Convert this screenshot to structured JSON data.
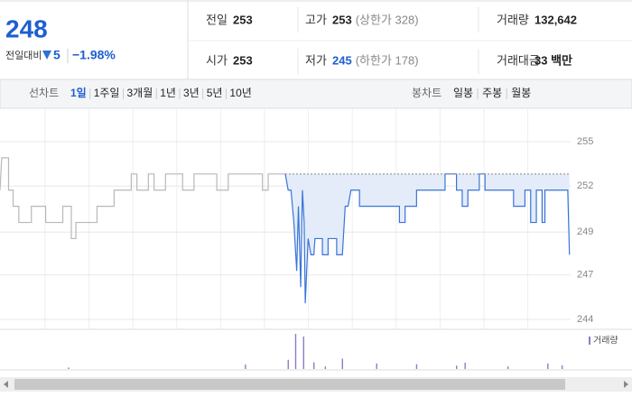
{
  "header": {
    "price": "248",
    "change_label": "전일대비",
    "change": "5",
    "change_pct": "−1.98%"
  },
  "stats": [
    {
      "label": "전일",
      "value": "253"
    },
    {
      "label": "고가",
      "value": "253",
      "extra": "(상한가 328)"
    },
    {
      "label": "거래량",
      "value": "132,642"
    },
    {
      "label": "시가",
      "value": "253"
    },
    {
      "label": "저가",
      "value": "245",
      "extra": "(하한가 178)"
    },
    {
      "label": "거래대금",
      "value": "33 백만"
    }
  ],
  "tabs": {
    "line_label": "선차트",
    "line": [
      "1일",
      "1주일",
      "3개월",
      "1년",
      "3년",
      "5년",
      "10년"
    ],
    "candle_label": "봉차트",
    "candle": [
      "일봉",
      "주봉",
      "월봉"
    ]
  },
  "chart_data": {
    "type": "line",
    "xlim": [
      0,
      100
    ],
    "ylim": [
      244,
      255
    ],
    "yticks": [
      255,
      {
        "value": 252.25,
        "label": "252"
      },
      {
        "value": 249.4,
        "label": "249"
      },
      {
        "value": 246.75,
        "label": "247"
      },
      244
    ],
    "grid": true,
    "series": [
      {
        "color": "#b8b8b8",
        "x": [
          0,
          0.3,
          1.5,
          1.5,
          2.3,
          2.3,
          3.3,
          3.3,
          5.5,
          5.5,
          8,
          8,
          11,
          11,
          12.5,
          12.5,
          13.3,
          13.3,
          17,
          17,
          20,
          20,
          23,
          23,
          24,
          24,
          26,
          26,
          27,
          27,
          29,
          29,
          32,
          32,
          34,
          34,
          38,
          38,
          40,
          40,
          46,
          46,
          47,
          47,
          50
        ],
        "values": [
          252,
          254,
          254,
          252,
          252,
          251,
          251,
          250,
          250,
          251,
          251,
          250,
          250,
          251,
          251,
          249,
          249,
          250,
          250,
          251,
          251,
          252,
          252,
          253,
          253,
          252,
          252,
          253,
          253,
          252,
          252,
          253,
          253,
          252,
          252,
          253,
          253,
          252,
          252,
          253,
          253,
          252,
          252,
          253,
          253
        ]
      },
      {
        "color": "#3a74d8",
        "fill": "#e3ecf8",
        "x": [
          50,
          50.5,
          51,
          51.5,
          52,
          52.3,
          52.7,
          53,
          53.3,
          53.5,
          54,
          54.5,
          55,
          55.2,
          56.5,
          56.5,
          57.5,
          57.5,
          59,
          59,
          60,
          60.5,
          61,
          61.5,
          63,
          63,
          70,
          70,
          71,
          71,
          73,
          73,
          78,
          78,
          80,
          80,
          81,
          81,
          82,
          82,
          84,
          84,
          85,
          85,
          90,
          90,
          92,
          92,
          93,
          93,
          94,
          94,
          95,
          95,
          95.5,
          95.5,
          99.5,
          99.8
        ],
        "values": [
          253,
          252,
          252,
          250,
          247,
          251,
          246,
          252,
          250,
          245,
          249,
          248,
          248,
          249,
          249,
          248,
          248,
          249,
          249,
          248,
          248,
          251,
          251,
          252,
          252,
          251,
          251,
          250,
          250,
          251,
          251,
          252,
          252,
          253,
          253,
          252,
          252,
          251,
          251,
          252,
          252,
          253,
          253,
          252,
          252,
          251,
          251,
          252,
          252,
          250,
          250,
          252,
          252,
          250,
          250,
          252,
          252,
          248
        ]
      }
    ],
    "reference": {
      "value": 253,
      "from": 50,
      "to": 100
    },
    "volume": {
      "label": "거래량",
      "color": "#8f7bc4",
      "ylim": [
        0,
        10000
      ],
      "x": [
        12,
        43,
        50.5,
        51.8,
        53.2,
        55,
        57,
        60,
        66,
        73,
        80,
        81.5,
        89,
        96,
        98.5
      ],
      "values": [
        400,
        1200,
        2500,
        9500,
        8800,
        1800,
        700,
        2800,
        1500,
        1300,
        900,
        1700,
        700,
        1500,
        1000
      ]
    }
  }
}
